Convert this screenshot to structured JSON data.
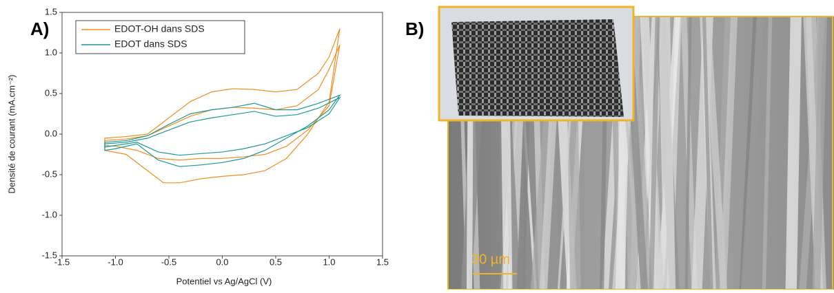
{
  "panel_a": {
    "label": "A)"
  },
  "panel_b": {
    "label": "B)",
    "scale_bar": "30 µm"
  },
  "chart_data": {
    "type": "line",
    "x_label": "Potentiel vs Ag/AgCl (V)",
    "y_label": "Densité de courant (mA.cm⁻²)",
    "xlim": [
      -1.5,
      1.5
    ],
    "ylim": [
      -1.5,
      1.5
    ],
    "xticks": [
      -1.5,
      {
        "value": -1,
        "label": "-1.0"
      },
      -0.5,
      {
        "value": 0,
        "label": "0.0"
      },
      0.5,
      {
        "value": 1,
        "label": "1.0"
      },
      1.5
    ],
    "yticks": [
      -1.5,
      {
        "value": -1,
        "label": "-1.0"
      },
      -0.5,
      {
        "value": 0,
        "label": "0.0"
      },
      0.5,
      {
        "value": 1,
        "label": "1.0"
      },
      1.5
    ],
    "grid": false,
    "legend": "upper left",
    "series": [
      {
        "name": "EDOT-OH dans SDS",
        "color": "#f28c1e",
        "cycles": [
          {
            "x": [
              -1.1,
              -0.9,
              -0.7,
              -0.5,
              -0.3,
              -0.1,
              0.1,
              0.3,
              0.5,
              0.7,
              0.9,
              1.0,
              1.1,
              1.0,
              0.8,
              0.6,
              0.4,
              0.2,
              0.0,
              -0.2,
              -0.4,
              -0.55,
              -0.7,
              -0.9,
              -1.1
            ],
            "values": [
              -0.05,
              -0.03,
              0.0,
              0.2,
              0.4,
              0.52,
              0.56,
              0.55,
              0.52,
              0.55,
              0.75,
              0.95,
              1.3,
              0.4,
              0.0,
              -0.3,
              -0.45,
              -0.5,
              -0.52,
              -0.55,
              -0.6,
              -0.6,
              -0.45,
              -0.25,
              -0.2
            ]
          },
          {
            "x": [
              -1.1,
              -0.9,
              -0.7,
              -0.5,
              -0.3,
              -0.1,
              0.1,
              0.3,
              0.5,
              0.7,
              0.9,
              1.0,
              1.1,
              1.0,
              0.8,
              0.6,
              0.4,
              0.2,
              0.0,
              -0.2,
              -0.4,
              -0.6,
              -0.8,
              -1.0,
              -1.1
            ],
            "values": [
              -0.08,
              -0.06,
              -0.02,
              0.1,
              0.22,
              0.3,
              0.33,
              0.32,
              0.3,
              0.35,
              0.55,
              0.8,
              1.1,
              0.35,
              0.05,
              -0.15,
              -0.25,
              -0.28,
              -0.3,
              -0.3,
              -0.32,
              -0.3,
              -0.2,
              -0.15,
              -0.14
            ]
          }
        ]
      },
      {
        "name": "EDOT dans SDS",
        "color": "#1a9a95",
        "cycles": [
          {
            "x": [
              -1.1,
              -0.9,
              -0.7,
              -0.5,
              -0.3,
              -0.1,
              0.1,
              0.3,
              0.5,
              0.7,
              0.9,
              1.1,
              1.0,
              0.8,
              0.6,
              0.4,
              0.2,
              0.0,
              -0.2,
              -0.4,
              -0.6,
              -0.8,
              -1.0,
              -1.1
            ],
            "values": [
              -0.1,
              -0.08,
              -0.02,
              0.12,
              0.25,
              0.3,
              0.33,
              0.38,
              0.3,
              0.3,
              0.38,
              0.48,
              0.3,
              0.1,
              -0.05,
              -0.2,
              -0.3,
              -0.35,
              -0.38,
              -0.4,
              -0.32,
              -0.12,
              -0.18,
              -0.2
            ]
          },
          {
            "x": [
              -1.1,
              -0.9,
              -0.7,
              -0.5,
              -0.3,
              -0.1,
              0.1,
              0.3,
              0.5,
              0.7,
              0.9,
              1.1,
              1.0,
              0.8,
              0.6,
              0.4,
              0.2,
              0.0,
              -0.2,
              -0.4,
              -0.6,
              -0.8,
              -1.0,
              -1.1
            ],
            "values": [
              -0.12,
              -0.1,
              -0.05,
              0.05,
              0.15,
              0.2,
              0.24,
              0.28,
              0.22,
              0.24,
              0.32,
              0.45,
              0.25,
              0.08,
              -0.02,
              -0.12,
              -0.18,
              -0.22,
              -0.24,
              -0.26,
              -0.22,
              -0.1,
              -0.14,
              -0.16
            ]
          }
        ]
      }
    ]
  }
}
